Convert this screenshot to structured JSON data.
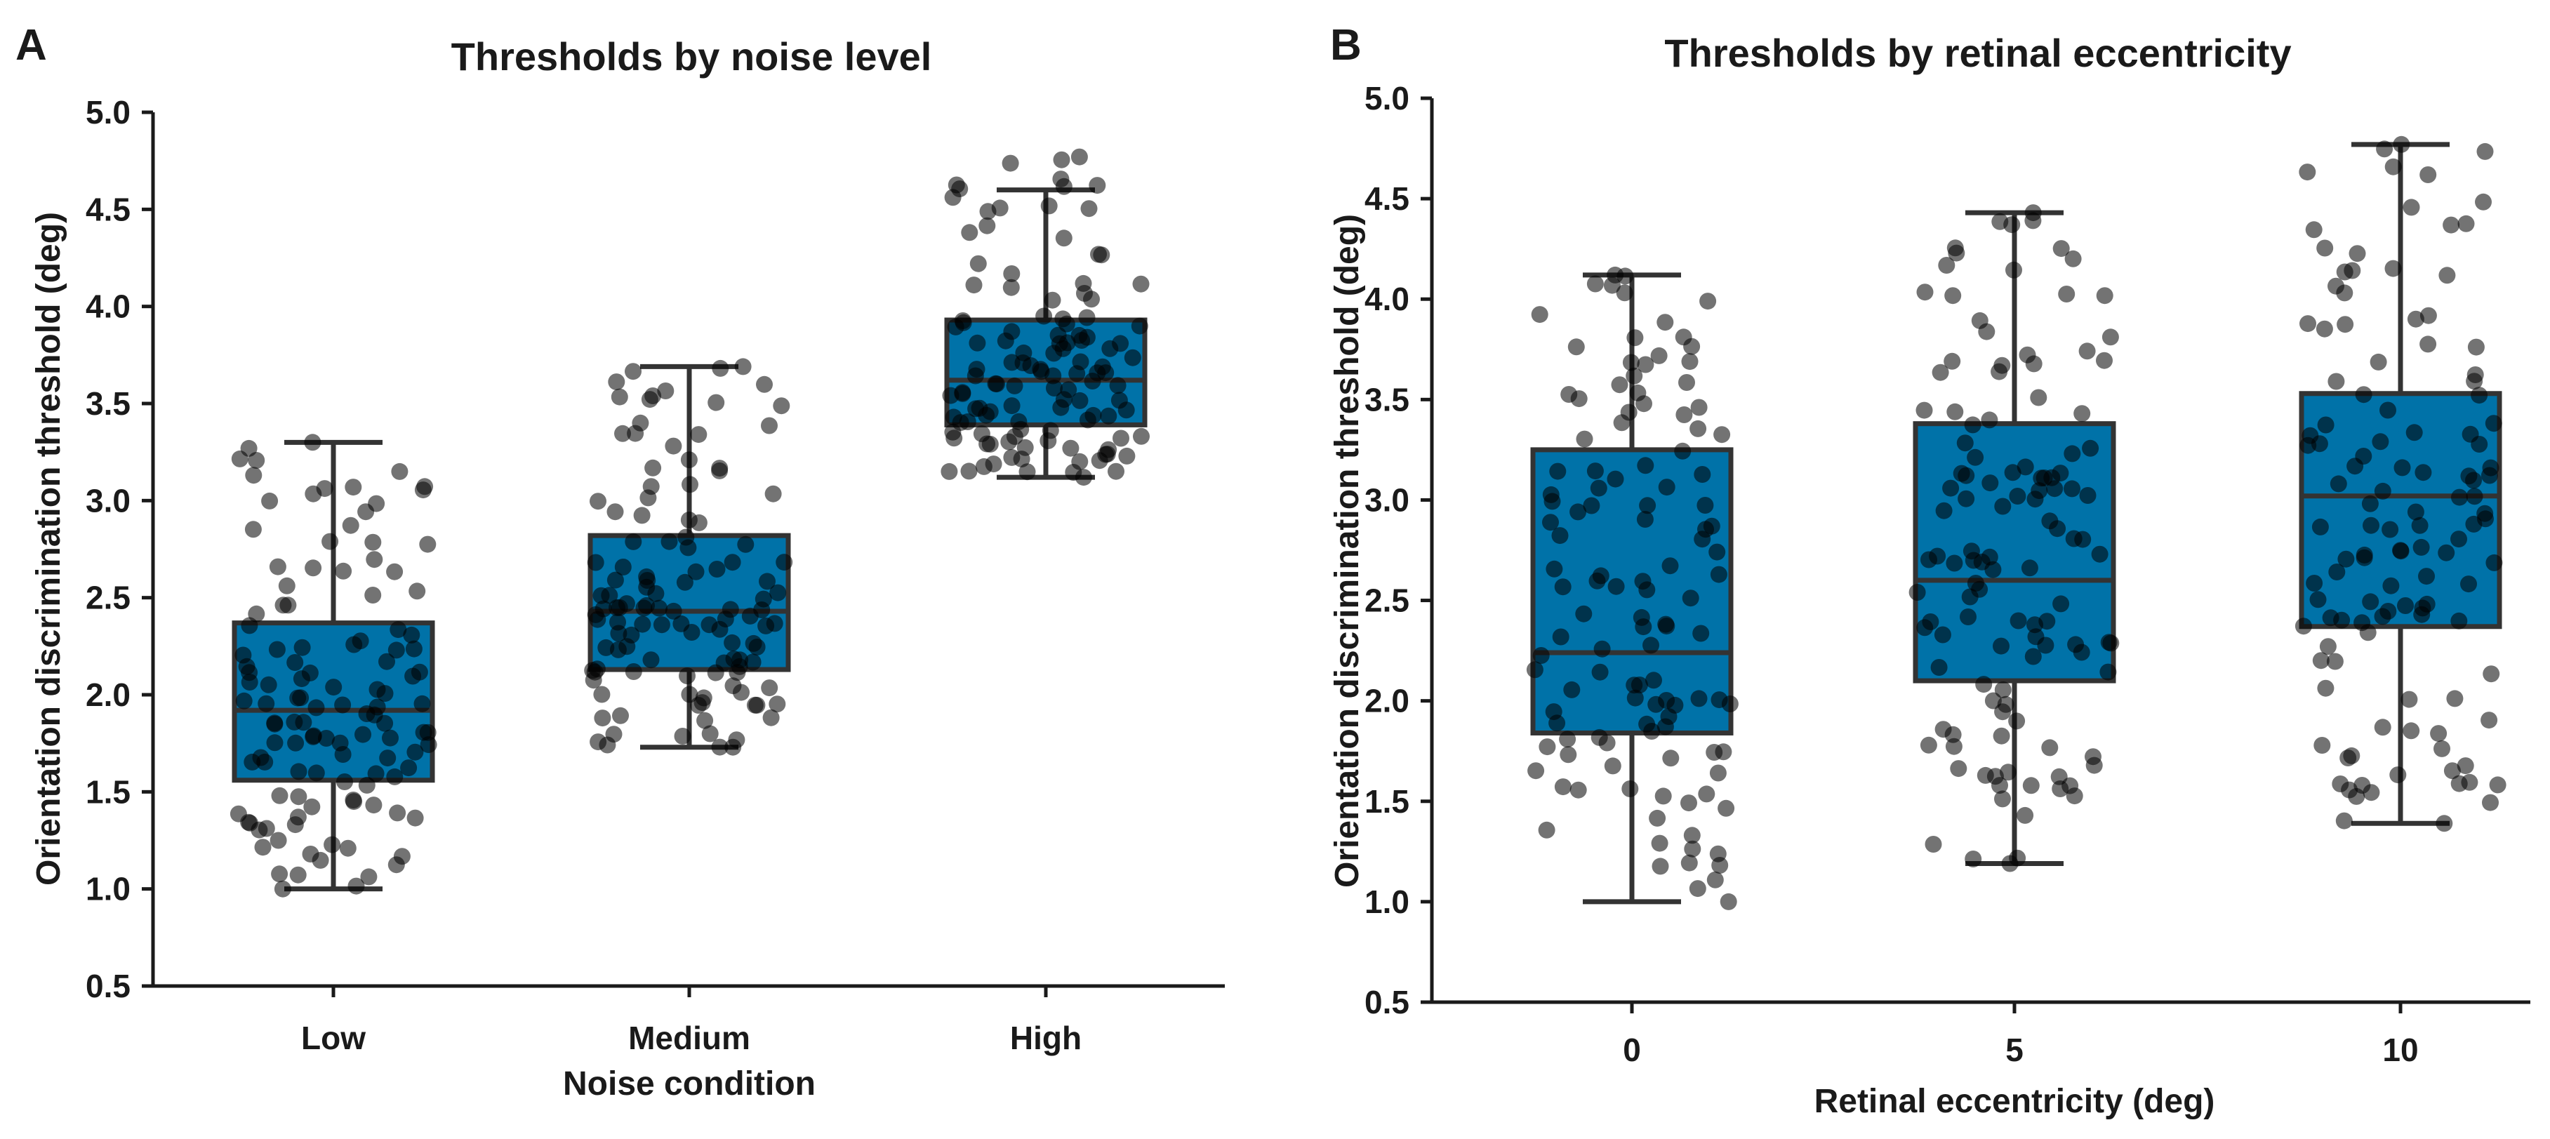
{
  "figure": {
    "box_color": "#0072a8",
    "point_color": "#000000"
  },
  "chart_data": [
    {
      "panel": "A",
      "type": "box",
      "title": "Thresholds by noise level",
      "xlabel": "Noise condition",
      "ylabel": "Orientation discrimination threshold (deg)",
      "ylim": [
        0.5,
        5.0
      ],
      "yticks": [
        "0.5",
        "1.0",
        "1.5",
        "2.0",
        "2.5",
        "3.0",
        "3.5",
        "4.0",
        "4.5",
        "5.0"
      ],
      "categories": [
        "Low",
        "Medium",
        "High"
      ],
      "boxes": [
        {
          "category": "Low",
          "min": 1.0,
          "q1": 1.56,
          "median": 1.92,
          "q3": 2.37,
          "max": 3.3
        },
        {
          "category": "Medium",
          "min": 1.73,
          "q1": 2.13,
          "median": 2.43,
          "q3": 2.82,
          "max": 3.69
        },
        {
          "category": "High",
          "min": 3.12,
          "q1": 3.39,
          "median": 3.62,
          "q3": 3.93,
          "max": 4.6
        }
      ],
      "points_per_group": 120,
      "point_max_values": [
        3.3,
        3.69,
        4.77
      ]
    },
    {
      "panel": "B",
      "type": "box",
      "title": "Thresholds by retinal eccentricity",
      "xlabel": "Retinal eccentricity (deg)",
      "ylabel": "Orientation discrimination threshold (deg)",
      "ylim": [
        0.5,
        5.0
      ],
      "yticks": [
        "0.5",
        "1.0",
        "1.5",
        "2.0",
        "2.5",
        "3.0",
        "3.5",
        "4.0",
        "4.5",
        "5.0"
      ],
      "categories": [
        "0",
        "5",
        "10"
      ],
      "boxes": [
        {
          "category": "0",
          "min": 1.0,
          "q1": 1.84,
          "median": 2.24,
          "q3": 3.25,
          "max": 4.12
        },
        {
          "category": "5",
          "min": 1.19,
          "q1": 2.1,
          "median": 2.6,
          "q3": 3.38,
          "max": 4.43
        },
        {
          "category": "10",
          "min": 1.39,
          "q1": 2.37,
          "median": 3.02,
          "q3": 3.53,
          "max": 4.77
        }
      ],
      "points_per_group": 120,
      "point_max_values": [
        4.12,
        4.43,
        4.77
      ]
    }
  ]
}
